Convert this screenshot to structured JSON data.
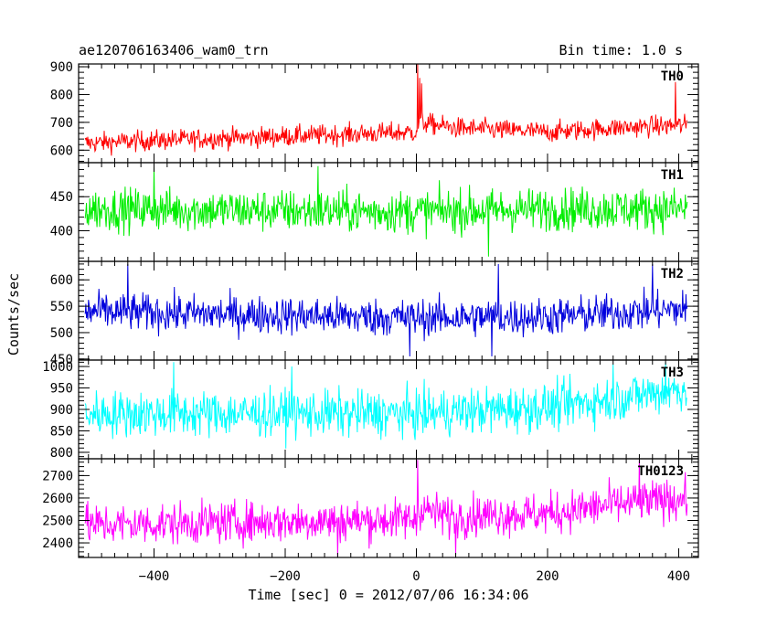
{
  "header": {
    "title": "ae120706163406_wam0_trn",
    "bin_time": "Bin time: 1.0 s"
  },
  "chart_data": {
    "type": "line",
    "xlabel": "Time [sec] 0 = 2012/07/06 16:34:06",
    "ylabel": "Counts/sec",
    "xlim": [
      -515,
      430
    ],
    "x_ticks": [
      -400,
      -200,
      0,
      200,
      400
    ],
    "x_tick_labels": [
      "−400",
      "−200",
      "0",
      "200",
      "400"
    ],
    "x_range": [
      -505,
      413
    ],
    "grid": false,
    "panels": [
      {
        "name": "TH0",
        "color": "#ff0000",
        "ylim": [
          555,
          910
        ],
        "y_ticks": [
          600,
          700,
          800,
          900
        ],
        "y_tick_labels": [
          "600",
          "700",
          "800",
          "900"
        ],
        "baseline": [
          [
            -505,
            625
          ],
          [
            -400,
            635
          ],
          [
            -200,
            650
          ],
          [
            -1,
            665
          ],
          [
            5,
            700
          ],
          [
            60,
            680
          ],
          [
            200,
            665
          ],
          [
            300,
            680
          ],
          [
            413,
            690
          ]
        ],
        "noise": 26,
        "spikes": [
          [
            2,
            910
          ],
          [
            5,
            860
          ],
          [
            8,
            840
          ],
          [
            395,
            845
          ]
        ]
      },
      {
        "name": "TH1",
        "color": "#00ee00",
        "ylim": [
          355,
          500
        ],
        "y_ticks": [
          400,
          450
        ],
        "y_tick_labels": [
          "400",
          "450"
        ],
        "baseline": [
          [
            -505,
            432
          ],
          [
            -300,
            430
          ],
          [
            0,
            428
          ],
          [
            200,
            432
          ],
          [
            413,
            432
          ]
        ],
        "noise": 22,
        "spikes": [
          [
            -400,
            495
          ],
          [
            -150,
            495
          ],
          [
            110,
            362
          ]
        ]
      },
      {
        "name": "TH2",
        "color": "#0000dd",
        "ylim": [
          448,
          635
        ],
        "y_ticks": [
          450,
          500,
          550,
          600
        ],
        "y_tick_labels": [
          "450",
          "500",
          "550",
          "600"
        ],
        "baseline": [
          [
            -505,
            540
          ],
          [
            -300,
            535
          ],
          [
            0,
            528
          ],
          [
            200,
            530
          ],
          [
            413,
            545
          ]
        ],
        "noise": 25,
        "spikes": [
          [
            -440,
            630
          ],
          [
            -10,
            455
          ],
          [
            115,
            455
          ],
          [
            125,
            630
          ],
          [
            360,
            630
          ]
        ]
      },
      {
        "name": "TH3",
        "color": "#00ffff",
        "ylim": [
          785,
          1015
        ],
        "y_ticks": [
          800,
          850,
          900,
          950,
          1000
        ],
        "y_tick_labels": [
          "800",
          "850",
          "900",
          "950",
          "1000"
        ],
        "baseline": [
          [
            -505,
            890
          ],
          [
            -300,
            890
          ],
          [
            0,
            890
          ],
          [
            200,
            905
          ],
          [
            300,
            925
          ],
          [
            413,
            950
          ]
        ],
        "noise": 38,
        "spikes": [
          [
            -370,
            1010
          ],
          [
            -190,
            1000
          ],
          [
            300,
            1005
          ],
          [
            380,
            1010
          ]
        ]
      },
      {
        "name": "TH0123",
        "color": "#ff00ff",
        "ylim": [
          2335,
          2775
        ],
        "y_ticks": [
          2400,
          2500,
          2600,
          2700
        ],
        "y_tick_labels": [
          "2400",
          "2500",
          "2600",
          "2700"
        ],
        "baseline": [
          [
            -505,
            2480
          ],
          [
            -300,
            2490
          ],
          [
            -1,
            2505
          ],
          [
            5,
            2560
          ],
          [
            40,
            2520
          ],
          [
            200,
            2530
          ],
          [
            300,
            2570
          ],
          [
            413,
            2600
          ]
        ],
        "noise": 65,
        "spikes": [
          [
            2,
            2770
          ],
          [
            -120,
            2340
          ],
          [
            60,
            2345
          ],
          [
            340,
            2770
          ]
        ]
      }
    ]
  }
}
